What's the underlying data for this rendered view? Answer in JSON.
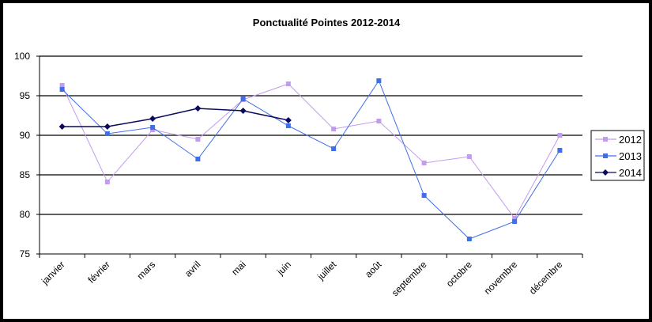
{
  "chart_data": {
    "type": "line",
    "title": "Ponctualité Pointes 2012-2014",
    "xlabel": "",
    "ylabel": "",
    "categories": [
      "janvier",
      "février",
      "mars",
      "avril",
      "mai",
      "juin",
      "juillet",
      "août",
      "septembre",
      "octobre",
      "novembre",
      "décembre"
    ],
    "ylim": [
      75,
      100
    ],
    "yticks": [
      75,
      80,
      85,
      90,
      95,
      100
    ],
    "grid": true,
    "legend": "right",
    "series": [
      {
        "name": "2012",
        "color": "#c39bef",
        "marker": "square",
        "values": [
          96.3,
          84.1,
          90.7,
          89.5,
          94.5,
          96.5,
          90.8,
          91.8,
          86.5,
          87.3,
          79.5,
          90.0
        ]
      },
      {
        "name": "2013",
        "color": "#3e6fe8",
        "marker": "square",
        "values": [
          95.8,
          90.2,
          91.0,
          87.0,
          94.6,
          91.2,
          88.3,
          96.9,
          82.4,
          76.9,
          79.1,
          88.1
        ]
      },
      {
        "name": "2014",
        "color": "#0a0a5e",
        "marker": "diamond",
        "values": [
          91.1,
          91.1,
          92.1,
          93.4,
          93.1,
          91.9,
          null,
          null,
          null,
          null,
          null,
          null
        ]
      }
    ]
  }
}
